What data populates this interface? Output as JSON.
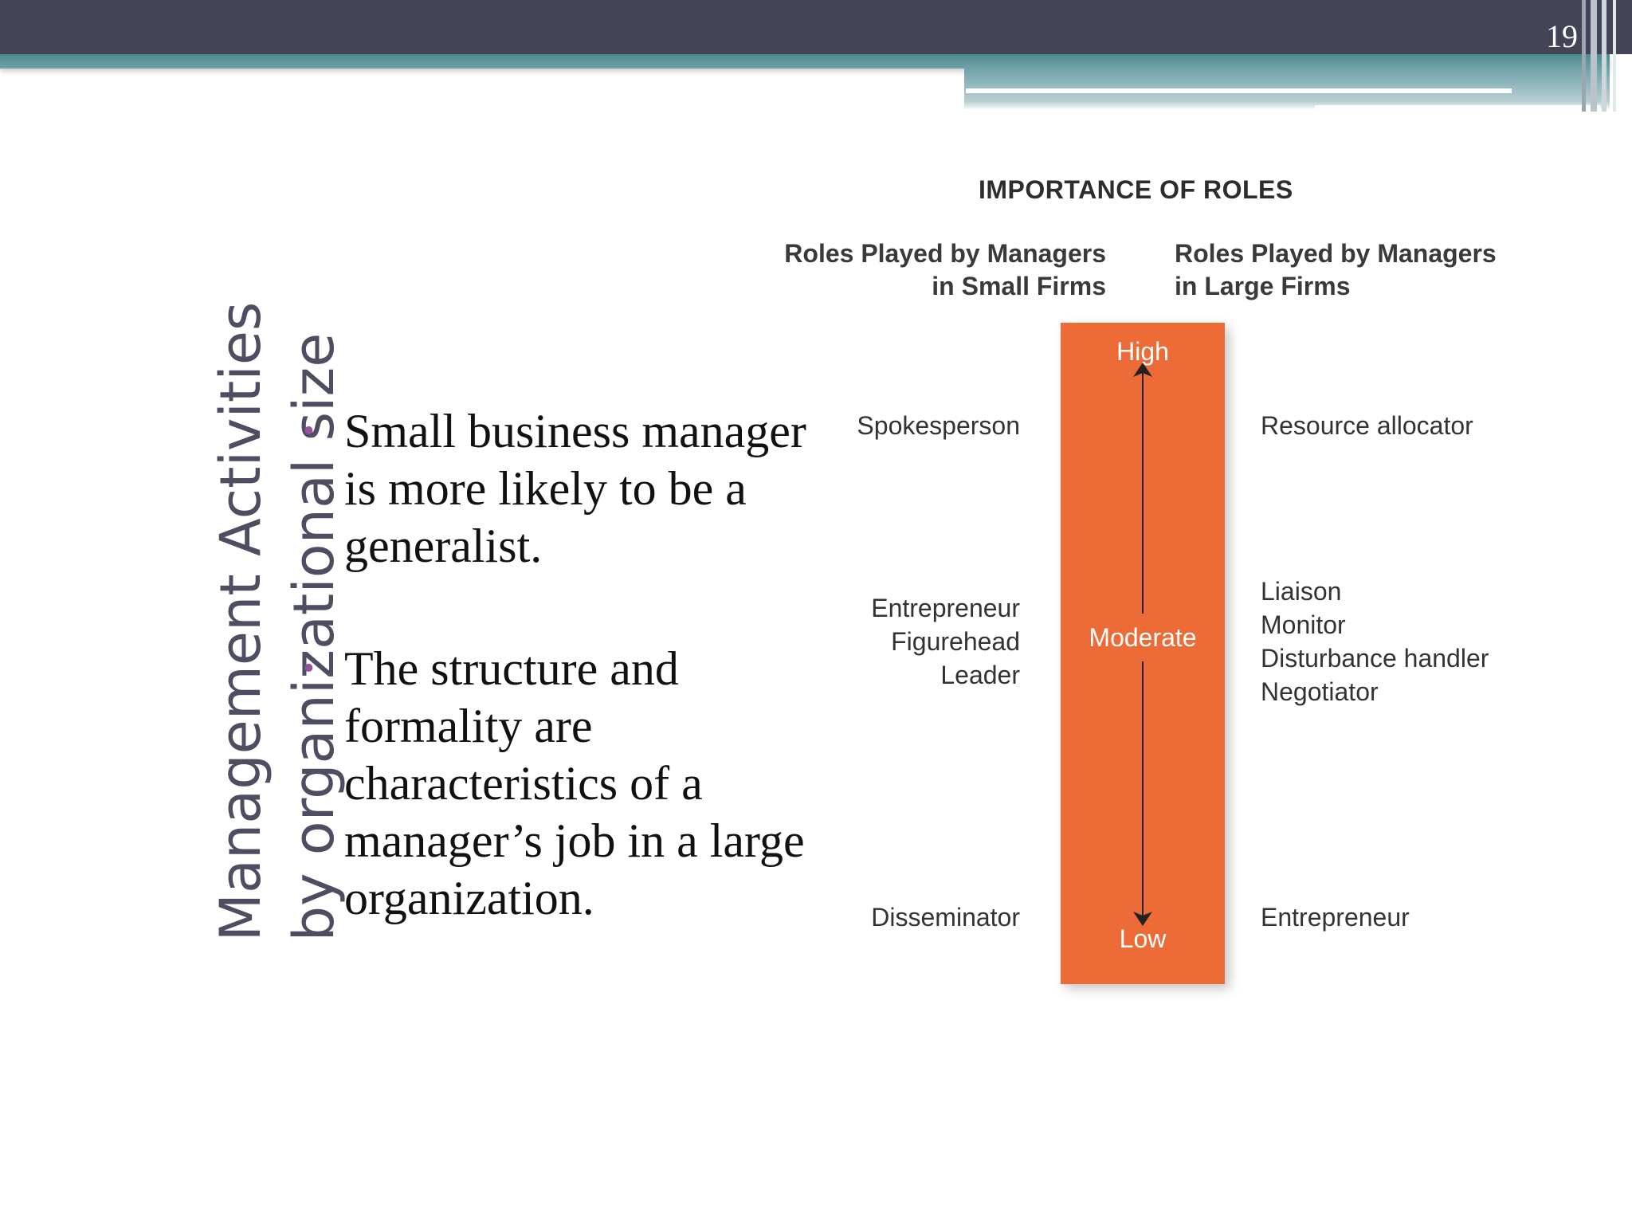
{
  "slide": {
    "number": "19",
    "title_lines": [
      "Management Activities",
      "by organizational size"
    ]
  },
  "bullets": [
    "Small business manager is more likely to be a generalist.",
    "The structure and formality are characteristics of a manager’s job in a large organization."
  ],
  "diagram": {
    "heading": "IMPORTANCE OF ROLES",
    "small_firms_header": [
      "Roles Played by Managers",
      "in Small Firms"
    ],
    "large_firms_header": [
      "Roles Played by Managers",
      "in Large Firms"
    ],
    "scale": {
      "high": "High",
      "moderate": "Moderate",
      "low": "Low"
    },
    "small_firms_roles": {
      "high": [
        "Spokesperson"
      ],
      "moderate": [
        "Entrepreneur",
        "Figurehead",
        "Leader"
      ],
      "low": [
        "Disseminator"
      ]
    },
    "large_firms_roles": {
      "high": [
        "Resource allocator"
      ],
      "moderate": [
        "Liaison",
        "Monitor",
        "Disturbance handler",
        "Negotiator"
      ],
      "low": [
        "Entrepreneur"
      ]
    },
    "colors": {
      "bar": "#ec6b37",
      "bullet": "#9b4f9e",
      "title": "#4d4e61",
      "header_bar": "#434455",
      "accent_band": "#4e8a92"
    }
  }
}
